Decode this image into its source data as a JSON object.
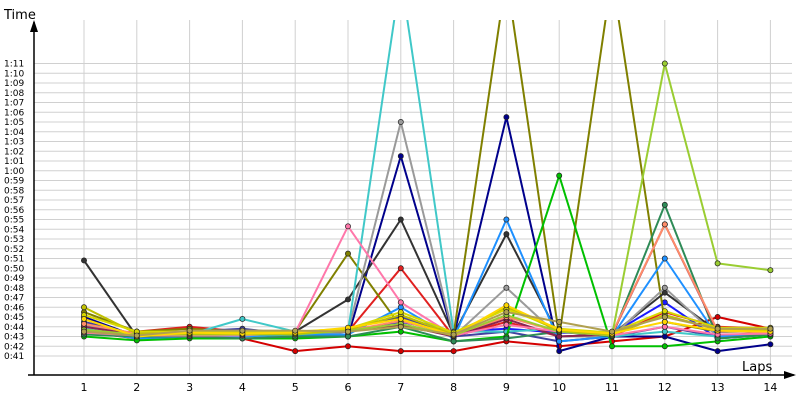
{
  "chart_data": {
    "type": "line",
    "xlabel": "Laps",
    "ylabel": "Time",
    "x": [
      1,
      2,
      3,
      4,
      5,
      6,
      7,
      8,
      9,
      10,
      11,
      12,
      13,
      14
    ],
    "y_ticks": [
      "0:41",
      "0:42",
      "0:43",
      "0:44",
      "0:45",
      "0:46",
      "0:47",
      "0:48",
      "0:49",
      "0:50",
      "0:51",
      "0:52",
      "0:53",
      "0:54",
      "0:55",
      "0:56",
      "0:57",
      "0:58",
      "0:59",
      "1:00",
      "1:01",
      "1:02",
      "1:03",
      "1:04",
      "1:05",
      "1:06",
      "1:07",
      "1:08",
      "1:09",
      "1:10",
      "1:11"
    ],
    "ylim_seconds": [
      40,
      72
    ],
    "grid": true,
    "legend": "none",
    "series": [
      {
        "color": "#d40000",
        "values": [
          43.5,
          42.8,
          43.0,
          42.8,
          41.5,
          42.0,
          41.5,
          41.5,
          42.5,
          42.0,
          42.5,
          43.0,
          45.0,
          43.8
        ]
      },
      {
        "color": "#e02020",
        "values": [
          43.2,
          43.5,
          44.0,
          43.5,
          43.0,
          43.5,
          50.0,
          43.0,
          44.5,
          43.0,
          43.0,
          45.5,
          44.0,
          43.8
        ]
      },
      {
        "color": "#4040a0",
        "values": [
          44.5,
          43.2,
          43.5,
          43.8,
          43.2,
          43.8,
          45.0,
          43.0,
          43.5,
          42.5,
          43.0,
          44.0,
          43.0,
          43.5
        ]
      },
      {
        "color": "#00008b",
        "values": [
          45.0,
          43.0,
          43.0,
          43.5,
          43.0,
          43.0,
          61.5,
          43.0,
          65.5,
          41.5,
          43.0,
          43.0,
          41.5,
          42.2
        ]
      },
      {
        "color": "#1a1aff",
        "values": [
          44.0,
          43.3,
          43.4,
          43.4,
          43.2,
          43.5,
          44.5,
          43.5,
          43.8,
          43.4,
          43.3,
          46.5,
          42.8,
          43.2
        ]
      },
      {
        "color": "#808000",
        "values": [
          45.5,
          43.5,
          43.8,
          43.5,
          43.5,
          51.5,
          44.0,
          43.2,
          80.0,
          43.0,
          80.0,
          44.5,
          43.5,
          43.5
        ]
      },
      {
        "color": "#333333",
        "values": [
          50.8,
          43.0,
          43.2,
          43.5,
          43.5,
          46.8,
          55.0,
          43.2,
          53.5,
          43.0,
          43.2,
          47.5,
          43.5,
          43.8
        ]
      },
      {
        "color": "#9a9a9a",
        "values": [
          44.2,
          43.2,
          43.4,
          43.2,
          43.0,
          43.5,
          65.0,
          43.0,
          48.0,
          43.0,
          43.0,
          48.0,
          43.0,
          43.2
        ]
      },
      {
        "color": "#40c8c8",
        "values": [
          43.8,
          43.0,
          43.2,
          44.8,
          43.5,
          43.5,
          80.0,
          43.5,
          43.5,
          43.8,
          43.0,
          43.5,
          43.0,
          43.2
        ]
      },
      {
        "color": "#1e90ff",
        "values": [
          43.6,
          42.8,
          43.0,
          43.0,
          43.2,
          43.2,
          46.0,
          42.8,
          55.0,
          42.5,
          43.0,
          51.0,
          43.0,
          43.2
        ]
      },
      {
        "color": "#00c000",
        "values": [
          43.0,
          42.6,
          42.8,
          42.8,
          42.8,
          43.0,
          43.5,
          42.5,
          43.0,
          59.5,
          42.0,
          42.0,
          42.5,
          43.0
        ]
      },
      {
        "color": "#2e8b57",
        "values": [
          43.2,
          43.0,
          43.0,
          42.8,
          43.0,
          43.0,
          44.0,
          42.5,
          42.8,
          43.5,
          43.0,
          56.5,
          42.8,
          43.2
        ]
      },
      {
        "color": "#8b2252",
        "values": [
          44.0,
          43.2,
          43.5,
          43.2,
          43.5,
          43.5,
          44.2,
          43.0,
          44.8,
          43.0,
          43.2,
          54.5,
          43.5,
          43.8
        ]
      },
      {
        "color": "#ff8c69",
        "values": [
          44.3,
          43.3,
          43.2,
          43.2,
          43.3,
          43.6,
          44.6,
          43.2,
          45.0,
          43.5,
          43.3,
          54.5,
          43.6,
          43.4
        ]
      },
      {
        "color": "#ff77aa",
        "values": [
          43.4,
          43.1,
          43.1,
          43.1,
          43.4,
          54.3,
          46.5,
          43.1,
          44.2,
          43.5,
          43.1,
          44.0,
          43.2,
          43.3
        ]
      },
      {
        "color": "#9acd32",
        "values": [
          43.7,
          43.2,
          43.2,
          43.2,
          43.2,
          43.6,
          44.3,
          43.1,
          45.2,
          43.5,
          43.1,
          71.0,
          50.5,
          49.8
        ]
      },
      {
        "color": "#c0c000",
        "values": [
          46.0,
          43.3,
          43.3,
          43.3,
          43.3,
          43.7,
          45.2,
          43.2,
          46.0,
          43.6,
          43.2,
          45.2,
          43.7,
          43.6
        ]
      },
      {
        "color": "#d8d800",
        "values": [
          45.2,
          43.5,
          43.5,
          43.5,
          43.5,
          43.8,
          45.5,
          43.4,
          45.8,
          43.8,
          43.4,
          45.6,
          43.9,
          43.9
        ]
      },
      {
        "color": "#ffd700",
        "values": [
          44.8,
          43.0,
          43.4,
          43.3,
          43.4,
          43.9,
          44.8,
          43.1,
          46.2,
          43.7,
          43.3,
          44.5,
          43.6,
          43.5
        ]
      },
      {
        "color": "#b0a050",
        "values": [
          43.5,
          43.1,
          43.6,
          43.6,
          43.6,
          43.5,
          44.0,
          43.2,
          45.5,
          44.5,
          43.5,
          45.0,
          43.8,
          43.8
        ]
      }
    ]
  }
}
